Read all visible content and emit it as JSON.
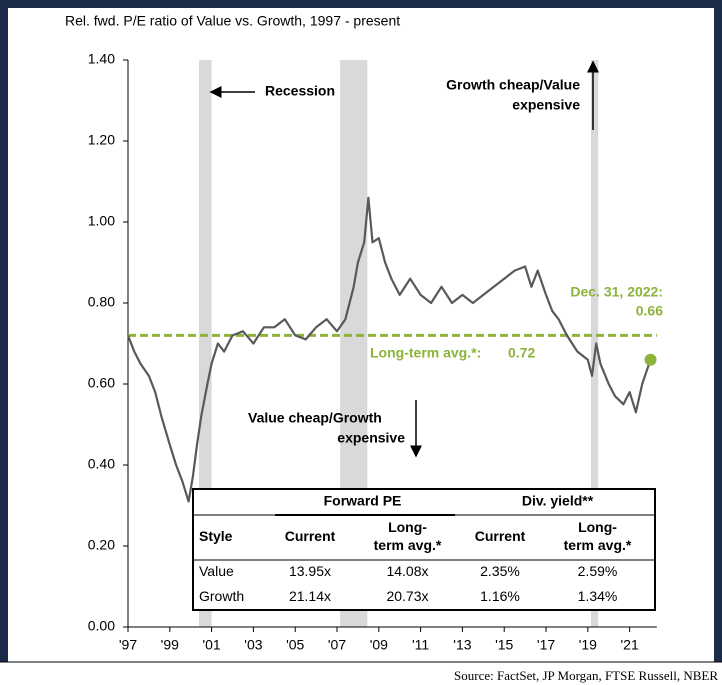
{
  "chart_data": {
    "type": "line",
    "title": "Rel. fwd. P/E ratio of Value vs. Growth, 1997 - present",
    "x": [
      1997.0,
      1997.3,
      1997.6,
      1998.0,
      1998.3,
      1998.6,
      1999.0,
      1999.3,
      1999.6,
      1999.9,
      2000.1,
      2000.3,
      2000.5,
      2000.8,
      2001.0,
      2001.3,
      2001.6,
      2002.0,
      2002.5,
      2003.0,
      2003.5,
      2004.0,
      2004.5,
      2005.0,
      2005.5,
      2006.0,
      2006.5,
      2007.0,
      2007.4,
      2007.8,
      2008.0,
      2008.3,
      2008.5,
      2008.7,
      2009.0,
      2009.3,
      2009.6,
      2010.0,
      2010.5,
      2011.0,
      2011.5,
      2012.0,
      2012.5,
      2013.0,
      2013.5,
      2014.0,
      2014.5,
      2015.0,
      2015.5,
      2016.0,
      2016.3,
      2016.6,
      2017.0,
      2017.3,
      2017.6,
      2018.0,
      2018.5,
      2019.0,
      2019.2,
      2019.4,
      2019.6,
      2020.0,
      2020.3,
      2020.7,
      2021.0,
      2021.3,
      2021.6,
      2022.0
    ],
    "series": [
      {
        "color": "#595959",
        "values": [
          0.72,
          0.68,
          0.65,
          0.62,
          0.58,
          0.52,
          0.45,
          0.4,
          0.36,
          0.31,
          0.37,
          0.45,
          0.52,
          0.6,
          0.65,
          0.7,
          0.68,
          0.72,
          0.73,
          0.7,
          0.74,
          0.74,
          0.76,
          0.72,
          0.71,
          0.74,
          0.76,
          0.73,
          0.76,
          0.84,
          0.9,
          0.95,
          1.06,
          0.95,
          0.96,
          0.9,
          0.86,
          0.82,
          0.86,
          0.82,
          0.8,
          0.84,
          0.8,
          0.82,
          0.8,
          0.82,
          0.84,
          0.86,
          0.88,
          0.89,
          0.84,
          0.88,
          0.82,
          0.78,
          0.76,
          0.72,
          0.68,
          0.66,
          0.62,
          0.7,
          0.65,
          0.6,
          0.57,
          0.55,
          0.58,
          0.53,
          0.6,
          0.66
        ]
      }
    ],
    "xlim": [
      1997,
      2022.3
    ],
    "ylim": [
      0,
      1.4
    ],
    "xticks": [
      {
        "value": 1997,
        "label": "'97"
      },
      {
        "value": 1999,
        "label": "'99"
      },
      {
        "value": 2001,
        "label": "'01"
      },
      {
        "value": 2003,
        "label": "'03"
      },
      {
        "value": 2005,
        "label": "'05"
      },
      {
        "value": 2007,
        "label": "'07"
      },
      {
        "value": 2009,
        "label": "'09"
      },
      {
        "value": 2011,
        "label": "'11"
      },
      {
        "value": 2013,
        "label": "'13"
      },
      {
        "value": 2015,
        "label": "'15"
      },
      {
        "value": 2017,
        "label": "'17"
      },
      {
        "value": 2019,
        "label": "'19"
      },
      {
        "value": 2021,
        "label": "'21"
      }
    ],
    "yticks": [
      {
        "value": 0,
        "label": "0.00"
      },
      {
        "value": 0.2,
        "label": "0.20"
      },
      {
        "value": 0.4,
        "label": "0.40"
      },
      {
        "value": 0.6,
        "label": "0.60"
      },
      {
        "value": 0.8,
        "label": "0.80"
      },
      {
        "value": 1.0,
        "label": "1.00"
      },
      {
        "value": 1.2,
        "label": "1.20"
      },
      {
        "value": 1.4,
        "label": "1.40"
      }
    ],
    "recessions": [
      [
        2000.4,
        2001.0
      ],
      [
        2007.15,
        2008.45
      ],
      [
        2019.15,
        2019.5
      ]
    ],
    "recession_label": "Recession",
    "average": {
      "label": "Long-term avg.*:",
      "value": 0.72,
      "color": "#8db33a"
    },
    "end_label": "Dec. 31, 2022:",
    "annotations": {
      "growth_cheap": [
        "Growth cheap/Value",
        "expensive"
      ],
      "value_cheap": [
        "Value cheap/Growth",
        "expensive"
      ]
    },
    "table": {
      "groups": [
        "Forward PE",
        "Div. yield**"
      ],
      "columns": [
        [
          "Style"
        ],
        [
          "Current"
        ],
        [
          "Long-",
          "term avg.*"
        ],
        [
          "Current"
        ],
        [
          "Long-",
          "term avg.*"
        ]
      ],
      "rows": [
        [
          "Value",
          "13.95x",
          "14.08x",
          "2.35%",
          "2.59%"
        ],
        [
          "Growth",
          "21.14x",
          "20.73x",
          "1.16%",
          "1.34%"
        ]
      ]
    },
    "source": "Source: FactSet, JP Morgan, FTSE Russell, NBER"
  }
}
